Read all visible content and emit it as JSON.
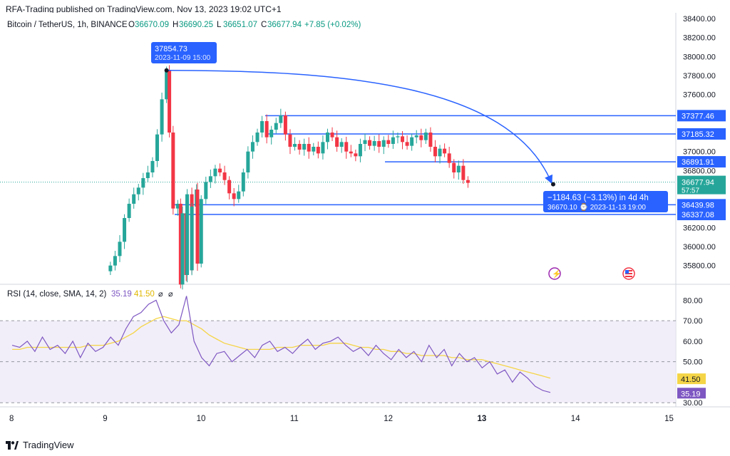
{
  "header": {
    "published": "RFA-Trading published on TradingView.com, Nov 13, 2023 19:02 UTC+1",
    "symbol": "Bitcoin / TetherUS, 1h, BINANCE",
    "ohlc": [
      {
        "k": "O",
        "v": "36670.09"
      },
      {
        "k": "H",
        "v": "36690.25"
      },
      {
        "k": "L",
        "v": "36651.07"
      },
      {
        "k": "C",
        "v": "36677.94"
      }
    ],
    "change": "+7.85 (+0.02%)"
  },
  "footer": {
    "brand": "TradingView"
  },
  "colors": {
    "up": "#26a69a",
    "down": "#f23645",
    "line": "#2962ff",
    "rsi": "#7e57c2",
    "sma": "#f5d547"
  },
  "chart_data": {
    "type": "candlestick",
    "x_ticks": [
      "8",
      "9",
      "10",
      "11",
      "12",
      "13",
      "14",
      "15"
    ],
    "y_ticks": [
      "38400.00",
      "38200.00",
      "38000.00",
      "37800.00",
      "37600.00",
      "37000.00",
      "36800.00",
      "36200.00",
      "36000.00",
      "35800.00"
    ],
    "ylim": [
      35640,
      38460
    ],
    "level_lines": [
      {
        "value": 37377.46,
        "label": "37377.46"
      },
      {
        "value": 37185.32,
        "label": "37185.32"
      },
      {
        "value": 36891.91,
        "label": "36891.91"
      },
      {
        "value": 36439.98,
        "label": "36439.98"
      },
      {
        "value": 36337.08,
        "label": "36337.08"
      }
    ],
    "last_price": {
      "label": "36677.94",
      "countdown": "57:57",
      "value": 36677.94
    },
    "high_callout": {
      "price": "37854.73",
      "date": "2023-11-09 15:00"
    },
    "measure_callout": {
      "line1": "−1184.63 (−3.13%) in 4d 4h",
      "line2": "36670.10 ⌚ 2023-11-13  19:00"
    },
    "candles": [
      {
        "x": 9.8,
        "c": 35600
      },
      {
        "x": 9.86,
        "c": 35700
      },
      {
        "x": 9.92,
        "c": 35750
      },
      {
        "x": 9.98,
        "c": 35820
      },
      {
        "x": 9.05,
        "c": 35800
      },
      {
        "x": 9.1,
        "c": 35900
      },
      {
        "x": 9.15,
        "c": 36050
      },
      {
        "x": 9.2,
        "c": 36300
      },
      {
        "x": 9.25,
        "c": 36450
      },
      {
        "x": 9.3,
        "c": 36550
      },
      {
        "x": 9.35,
        "c": 36620
      },
      {
        "x": 9.4,
        "c": 36720
      },
      {
        "x": 9.45,
        "c": 36780
      },
      {
        "x": 9.5,
        "c": 36900
      },
      {
        "x": 9.55,
        "c": 37180
      },
      {
        "x": 9.6,
        "c": 37550
      },
      {
        "x": 9.65,
        "c": 37854
      },
      {
        "x": 9.68,
        "c": 37200
      },
      {
        "x": 9.72,
        "c": 36400
      },
      {
        "x": 9.77,
        "c": 36450
      },
      {
        "x": 9.82,
        "c": 36350
      },
      {
        "x": 9.87,
        "c": 36550
      },
      {
        "x": 9.92,
        "c": 36420
      },
      {
        "x": 9.97,
        "c": 36600
      },
      {
        "x": 10.02,
        "c": 36500
      },
      {
        "x": 10.07,
        "c": 36680
      },
      {
        "x": 10.12,
        "c": 36740
      },
      {
        "x": 10.17,
        "c": 36820
      },
      {
        "x": 10.22,
        "c": 36780
      },
      {
        "x": 10.27,
        "c": 36700
      },
      {
        "x": 10.32,
        "c": 36560
      },
      {
        "x": 10.37,
        "c": 36500
      },
      {
        "x": 10.42,
        "c": 36580
      },
      {
        "x": 10.47,
        "c": 36780
      },
      {
        "x": 10.52,
        "c": 37000
      },
      {
        "x": 10.57,
        "c": 37100
      },
      {
        "x": 10.62,
        "c": 37200
      },
      {
        "x": 10.67,
        "c": 37320
      },
      {
        "x": 10.72,
        "c": 37150
      },
      {
        "x": 10.77,
        "c": 37230
      },
      {
        "x": 10.82,
        "c": 37300
      },
      {
        "x": 10.87,
        "c": 37380
      },
      {
        "x": 10.92,
        "c": 37180
      },
      {
        "x": 10.97,
        "c": 37050
      },
      {
        "x": 11.02,
        "c": 37080
      },
      {
        "x": 11.07,
        "c": 37020
      },
      {
        "x": 11.12,
        "c": 37080
      },
      {
        "x": 11.17,
        "c": 37000
      },
      {
        "x": 11.22,
        "c": 37050
      },
      {
        "x": 11.27,
        "c": 36980
      },
      {
        "x": 11.32,
        "c": 37100
      },
      {
        "x": 11.37,
        "c": 37200
      },
      {
        "x": 11.42,
        "c": 37150
      },
      {
        "x": 11.47,
        "c": 37050
      },
      {
        "x": 11.52,
        "c": 37100
      },
      {
        "x": 11.57,
        "c": 37000
      },
      {
        "x": 11.62,
        "c": 36980
      },
      {
        "x": 11.67,
        "c": 36950
      },
      {
        "x": 11.72,
        "c": 37080
      },
      {
        "x": 11.77,
        "c": 37120
      },
      {
        "x": 11.82,
        "c": 37060
      },
      {
        "x": 11.87,
        "c": 37110
      },
      {
        "x": 11.92,
        "c": 37050
      },
      {
        "x": 11.97,
        "c": 37120
      },
      {
        "x": 12.02,
        "c": 37080
      },
      {
        "x": 12.07,
        "c": 37150
      },
      {
        "x": 12.12,
        "c": 37160
      },
      {
        "x": 12.17,
        "c": 37100
      },
      {
        "x": 12.22,
        "c": 37060
      },
      {
        "x": 12.27,
        "c": 37150
      },
      {
        "x": 12.32,
        "c": 37170
      },
      {
        "x": 12.37,
        "c": 37120
      },
      {
        "x": 12.42,
        "c": 37200
      },
      {
        "x": 12.47,
        "c": 37050
      },
      {
        "x": 12.52,
        "c": 36950
      },
      {
        "x": 12.57,
        "c": 37030
      },
      {
        "x": 12.62,
        "c": 36980
      },
      {
        "x": 12.67,
        "c": 36880
      },
      {
        "x": 12.72,
        "c": 36780
      },
      {
        "x": 12.77,
        "c": 36850
      },
      {
        "x": 12.82,
        "c": 36700
      },
      {
        "x": 12.87,
        "c": 36670
      }
    ],
    "rsi": {
      "label": "RSI (14, close, SMA, 14, 2)",
      "value": "35.19",
      "sma_value": "41.50",
      "y_ticks": [
        "80.00",
        "70.00",
        "60.00",
        "50.00",
        "30.00"
      ],
      "ylim": [
        28,
        86
      ],
      "band": [
        30,
        70
      ],
      "mid": 50,
      "rsi_values": [
        58,
        57,
        60,
        55,
        62,
        56,
        58,
        54,
        60,
        52,
        59,
        55,
        57,
        62,
        58,
        66,
        72,
        74,
        78,
        80,
        70,
        64,
        68,
        82,
        60,
        52,
        48,
        54,
        55,
        50,
        53,
        56,
        52,
        58,
        60,
        55,
        57,
        54,
        58,
        61,
        56,
        59,
        60,
        62,
        58,
        55,
        57,
        53,
        58,
        54,
        51,
        56,
        52,
        55,
        50,
        58,
        52,
        56,
        48,
        54,
        50,
        52,
        47,
        50,
        44,
        46,
        40,
        45,
        42,
        38,
        36,
        35
      ],
      "sma_values": [
        56,
        56,
        57,
        57,
        57,
        57,
        57,
        57,
        57,
        57,
        58,
        58,
        58,
        59,
        60,
        62,
        64,
        67,
        69,
        71,
        72,
        71,
        70,
        70,
        68,
        66,
        63,
        61,
        59,
        58,
        57,
        56,
        56,
        56,
        56,
        57,
        57,
        57,
        58,
        58,
        58,
        58,
        59,
        59,
        59,
        58,
        57,
        57,
        56,
        56,
        55,
        55,
        54,
        54,
        53,
        53,
        53,
        53,
        52,
        52,
        51,
        51,
        51,
        50,
        49,
        48,
        47,
        46,
        45,
        44,
        43,
        42
      ]
    }
  }
}
